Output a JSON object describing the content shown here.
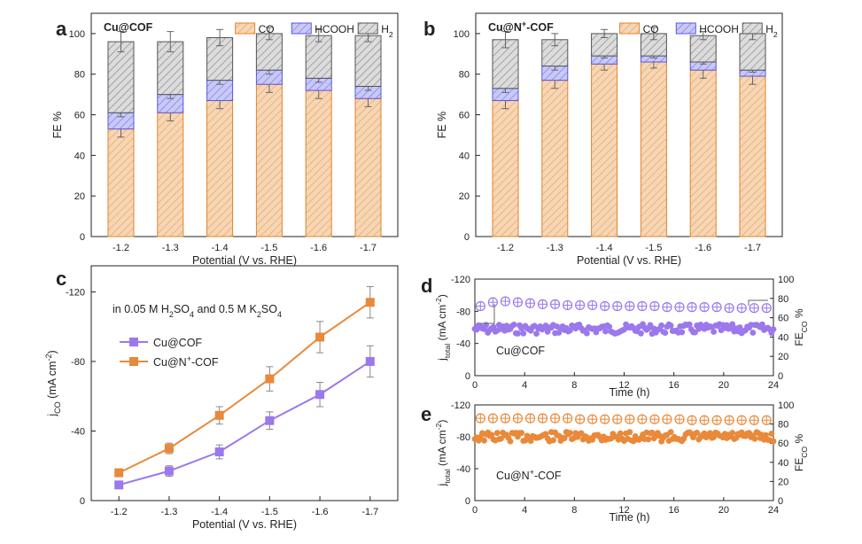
{
  "panels": {
    "a": "a",
    "b": "b",
    "c": "c",
    "d": "d",
    "e": "e"
  },
  "colors": {
    "co": "#f0c7a0",
    "co_edge": "#e2842c",
    "hcooh": "#a7a7f2",
    "hcooh_edge": "#5858e0",
    "h2": "#c8c8c8",
    "h2_edge": "#555555",
    "cucof": "#9b78ec",
    "cun": "#e9893a"
  },
  "chart_data": [
    {
      "id": "a",
      "type": "bar",
      "stacked": true,
      "title": "Cu@COF",
      "xlabel": "Potential (V vs. RHE)",
      "ylabel": "FE %",
      "categories": [
        "-1.2",
        "-1.3",
        "-1.4",
        "-1.5",
        "-1.6",
        "-1.7"
      ],
      "ylim": [
        0,
        110
      ],
      "yticks": [
        "0",
        "20",
        "40",
        "60",
        "80",
        "100"
      ],
      "series": [
        {
          "name": "CO",
          "values": [
            53,
            61,
            67,
            75,
            72,
            68
          ],
          "errors": [
            4,
            4,
            4,
            4,
            4,
            4
          ]
        },
        {
          "name": "HCOOH",
          "values": [
            8,
            9,
            10,
            7,
            6,
            6
          ],
          "errors": [
            2,
            2,
            2,
            2,
            2,
            2
          ]
        },
        {
          "name": "H2",
          "values": [
            35,
            26,
            21,
            18,
            21,
            25
          ],
          "errors": [
            5,
            5,
            4,
            3,
            3,
            3
          ]
        }
      ],
      "legend": [
        "CO",
        "HCOOH",
        "H2"
      ]
    },
    {
      "id": "b",
      "type": "bar",
      "stacked": true,
      "title": "Cu@N+-COF",
      "xlabel": "Potential (V vs. RHE)",
      "ylabel": "FE %",
      "categories": [
        "-1.2",
        "-1.3",
        "-1.4",
        "-1.5",
        "-1.6",
        "-1.7"
      ],
      "ylim": [
        0,
        110
      ],
      "yticks": [
        "0",
        "20",
        "40",
        "60",
        "80",
        "100"
      ],
      "series": [
        {
          "name": "CO",
          "values": [
            67,
            77,
            85,
            86,
            82,
            79
          ],
          "errors": [
            4,
            4,
            3,
            3,
            4,
            4
          ]
        },
        {
          "name": "HCOOH",
          "values": [
            6,
            7,
            4,
            3,
            4,
            3
          ],
          "errors": [
            2,
            2,
            1,
            1,
            1,
            1
          ]
        },
        {
          "name": "H2",
          "values": [
            24,
            13,
            11,
            11,
            13,
            18
          ],
          "errors": [
            4,
            3,
            2,
            3,
            2,
            3
          ]
        }
      ],
      "legend": [
        "CO",
        "HCOOH",
        "H2"
      ]
    },
    {
      "id": "c",
      "type": "line",
      "annotation": "in 0.05 M H2SO4 and 0.5 M K2SO4",
      "xlabel": "Potential (V vs. RHE)",
      "ylabel": "jCO (mA cm-2)",
      "categories": [
        "-1.2",
        "-1.3",
        "-1.4",
        "-1.5",
        "-1.6",
        "-1.7"
      ],
      "ylim": [
        0,
        -135
      ],
      "yticks": [
        "0",
        "-40",
        "-80",
        "-120"
      ],
      "series": [
        {
          "name": "Cu@COF",
          "values": [
            -9,
            -17,
            -28,
            -46,
            -61,
            -80
          ],
          "errors": [
            2,
            3,
            4,
            5,
            7,
            9
          ]
        },
        {
          "name": "Cu@N+-COF",
          "values": [
            -16,
            -30,
            -49,
            -70,
            -94,
            -114
          ],
          "errors": [
            2,
            3,
            5,
            7,
            9,
            9
          ]
        }
      ]
    },
    {
      "id": "d",
      "type": "scatter",
      "label": "Cu@COF",
      "xlabel": "Time (h)",
      "ylabel": "jtotal (mA cm-2)",
      "y2label": "FECO %",
      "xlim": [
        0,
        24
      ],
      "xticks": [
        "0",
        "4",
        "8",
        "12",
        "16",
        "20",
        "24"
      ],
      "ylim": [
        0,
        -120
      ],
      "yticks": [
        "0",
        "-40",
        "-80",
        "-120"
      ],
      "y2lim": [
        0,
        100
      ],
      "y2ticks": [
        "0",
        "20",
        "40",
        "60",
        "80",
        "100"
      ],
      "current_mean": -58,
      "fe_x": [
        0,
        1,
        2,
        3,
        4,
        5,
        6,
        7,
        8,
        9,
        10,
        11,
        12,
        13,
        14,
        15,
        16,
        17,
        18,
        19,
        20,
        21,
        22,
        23
      ],
      "fe_values": [
        72,
        76,
        77,
        76,
        75,
        74,
        74,
        73,
        73,
        73,
        72,
        72,
        72,
        72,
        72,
        71,
        71,
        71,
        71,
        71,
        70,
        70,
        70,
        70
      ]
    },
    {
      "id": "e",
      "type": "scatter",
      "label": "Cu@N+-COF",
      "xlabel": "Time (h)",
      "ylabel": "jtotal (mA cm-2)",
      "y2label": "FECO %",
      "xlim": [
        0,
        24
      ],
      "xticks": [
        "0",
        "4",
        "8",
        "12",
        "16",
        "20",
        "24"
      ],
      "ylim": [
        0,
        -120
      ],
      "yticks": [
        "0",
        "-40",
        "-80",
        "-120"
      ],
      "y2lim": [
        0,
        100
      ],
      "y2ticks": [
        "0",
        "20",
        "40",
        "60",
        "80",
        "100"
      ],
      "current_mean": -80,
      "fe_x": [
        0,
        1,
        2,
        3,
        4,
        5,
        6,
        7,
        8,
        9,
        10,
        11,
        12,
        13,
        14,
        15,
        16,
        17,
        18,
        19,
        20,
        21,
        22,
        23
      ],
      "fe_values": [
        86,
        86,
        86,
        86,
        86,
        86,
        86,
        86,
        85,
        85,
        85,
        85,
        85,
        85,
        85,
        85,
        85,
        84,
        84,
        84,
        84,
        84,
        84,
        84
      ]
    }
  ]
}
